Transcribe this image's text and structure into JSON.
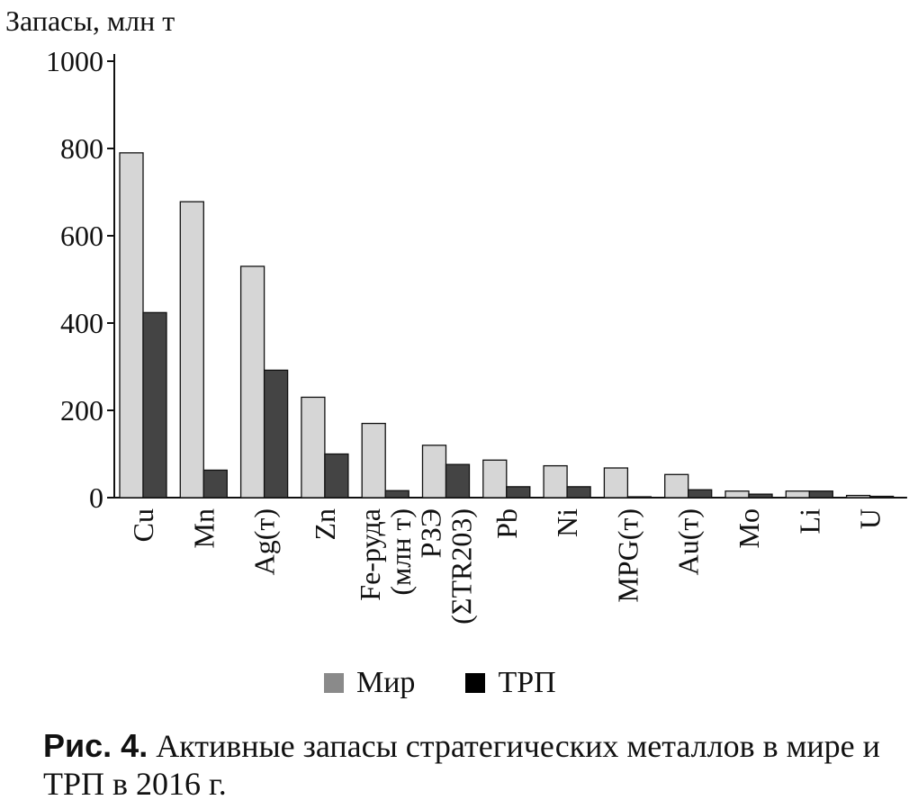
{
  "chart_data": {
    "type": "bar",
    "ylabel": "Запасы, млн т",
    "ylim": [
      0,
      1000
    ],
    "yticks": [
      0,
      200,
      400,
      600,
      800,
      1000
    ],
    "categories": [
      [
        "Cu"
      ],
      [
        "Mn"
      ],
      [
        "Ag(т)"
      ],
      [
        "Zn"
      ],
      [
        "Fe-руда",
        "(млн т)"
      ],
      [
        "РЗЭ",
        "(ΣTR203)"
      ],
      [
        "Pb"
      ],
      [
        "Ni"
      ],
      [
        "MPG(т)"
      ],
      [
        "Au(т)"
      ],
      [
        "Mo"
      ],
      [
        "Li"
      ],
      [
        "U"
      ]
    ],
    "series": [
      {
        "name": "Мир",
        "color": "#d6d6d6",
        "values": [
          790,
          678,
          530,
          230,
          170,
          120,
          86,
          73,
          68,
          53,
          15,
          15,
          5
        ]
      },
      {
        "name": "ТРП",
        "color": "#444444",
        "values": [
          424,
          63,
          292,
          100,
          16,
          76,
          25,
          25,
          2,
          18,
          8,
          15,
          3
        ]
      }
    ],
    "legend_colors": [
      "#8a8a8a",
      "#000000"
    ],
    "grid": false,
    "legend_position": "bottom"
  },
  "caption": {
    "label": "Рис. 4.",
    "text": " Активные запасы стратегических металлов в мире и ТРП в 2016 г."
  }
}
